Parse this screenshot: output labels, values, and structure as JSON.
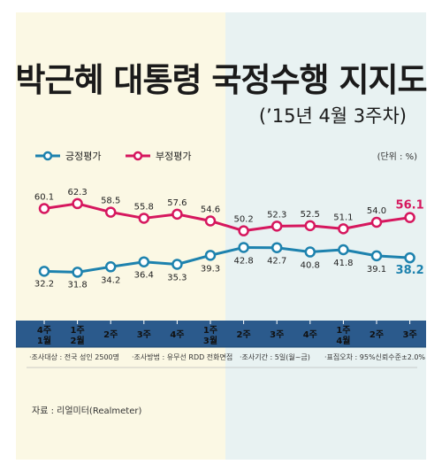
{
  "title": "박근혜 대통령 국정수행 지지도",
  "subtitle": "(’15년 4월 3주차)",
  "unit": "(단위 : %)",
  "footnotes": [
    "·조사대상 : 전국 성인 2500명",
    "·조사방법 : 유무선 RDD 전화면접",
    "·조사기간 : 5일(월~금)",
    "·표집오차 : 95%신뢰수준±2.0%"
  ],
  "source": "자료 : 리얼미터(Realmeter)",
  "colors": {
    "positive": "#1d82ae",
    "negative": "#d6175e",
    "axis_band": "#2b5a8c"
  },
  "chart_data": {
    "type": "line",
    "categories": [
      [
        "4주",
        "1월"
      ],
      [
        "1주",
        "2월"
      ],
      [
        "2주"
      ],
      [
        "3주"
      ],
      [
        "4주"
      ],
      [
        "1주",
        "3월"
      ],
      [
        "2주"
      ],
      [
        "3주"
      ],
      [
        "4주"
      ],
      [
        "1주",
        "4월"
      ],
      [
        "2주"
      ],
      [
        "3주"
      ]
    ],
    "series": [
      {
        "name": "긍정평가",
        "color": "#1d82ae",
        "values": [
          32.2,
          31.8,
          34.2,
          36.4,
          35.3,
          39.3,
          42.8,
          42.7,
          40.8,
          41.8,
          39.1,
          38.2
        ]
      },
      {
        "name": "부정평가",
        "color": "#d6175e",
        "values": [
          60.1,
          62.3,
          58.5,
          55.8,
          57.6,
          54.6,
          50.2,
          52.3,
          52.5,
          51.1,
          54.0,
          56.1
        ]
      }
    ],
    "value_labels": {
      "긍정평가": [
        "32.2",
        "31.8",
        "34.2",
        "36.4",
        "35.3",
        "39.3",
        "42.8",
        "42.7",
        "40.8",
        "41.8",
        "39.1",
        "38.2"
      ],
      "부정평가": [
        "60.1",
        "62.3",
        "58.5",
        "55.8",
        "57.6",
        "54.6",
        "50.2",
        "52.3",
        "52.5",
        "51.1",
        "54.0",
        "56.1"
      ]
    },
    "legend_position": "top-left",
    "grid": false
  }
}
